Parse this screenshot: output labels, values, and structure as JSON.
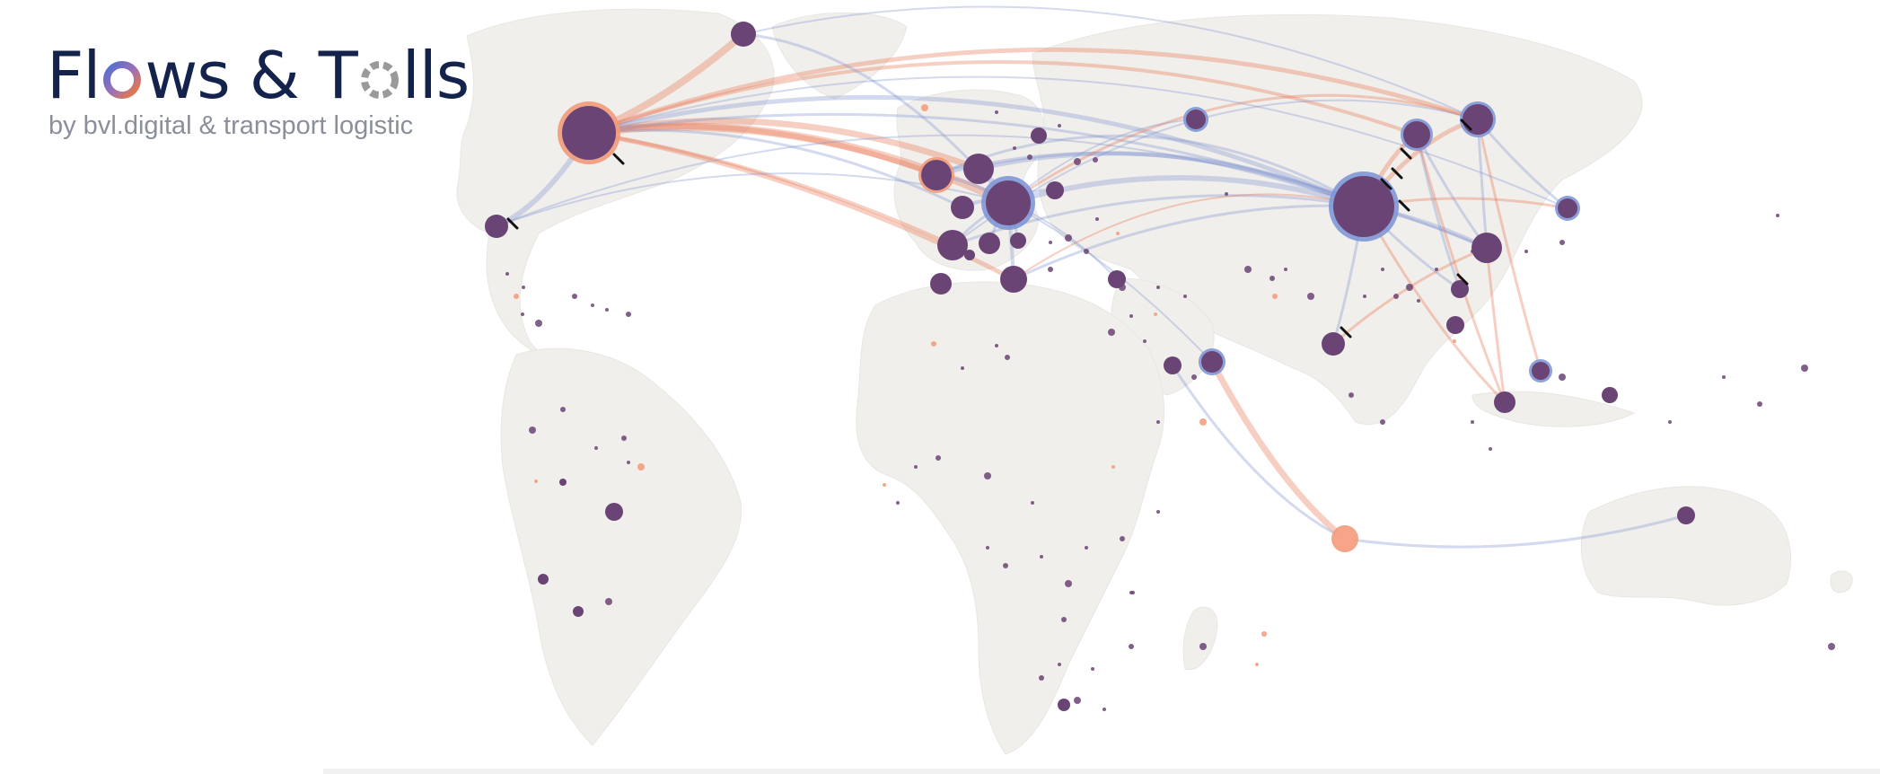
{
  "brand": {
    "title_part1": "Fl",
    "title_part2": "ws & T",
    "title_part3": "lls",
    "subtitle": "by bvl.digital & transport logistic"
  },
  "colors": {
    "land": "#f1efec",
    "node": "#6a4474",
    "node_ring_import": "#f29a7a",
    "node_ring_export": "#7f96d6",
    "flow_blue": "#8296d2",
    "flow_orange": "#e8764f",
    "logo_navy": "#14234b",
    "subtitle_gray": "#8a8f99"
  },
  "icons": {
    "o_flows": "gradient-ring-icon",
    "o_tolls": "dashed-ring-icon"
  }
}
